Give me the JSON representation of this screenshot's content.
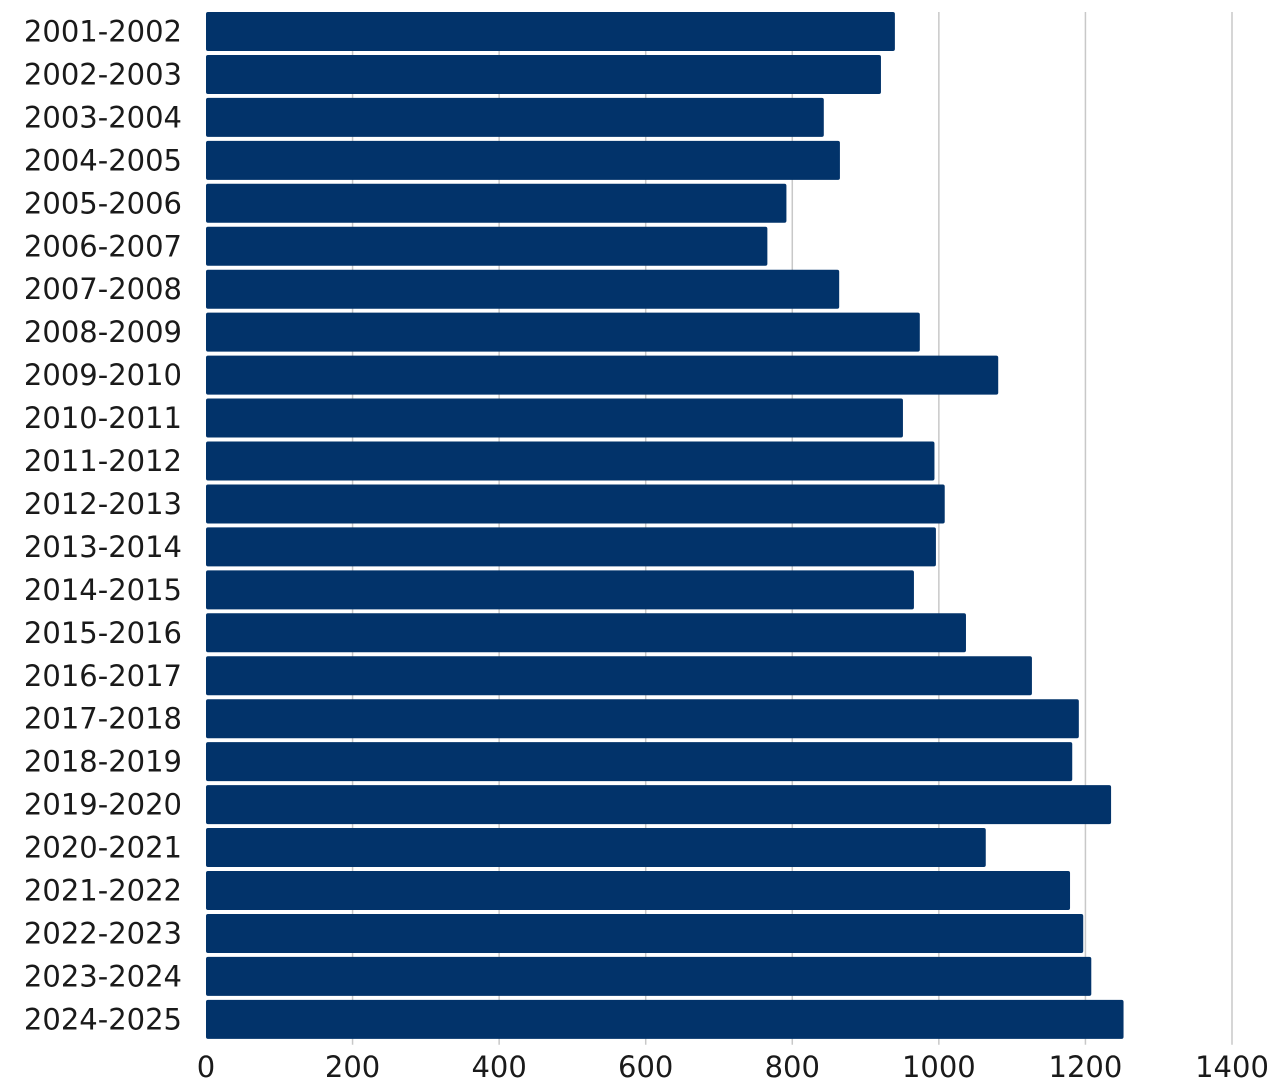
{
  "chart_data": {
    "type": "bar",
    "orientation": "horizontal",
    "categories": [
      "2001-2002",
      "2002-2003",
      "2003-2004",
      "2004-2005",
      "2005-2006",
      "2006-2007",
      "2007-2008",
      "2008-2009",
      "2009-2010",
      "2010-2011",
      "2011-2012",
      "2012-2013",
      "2013-2014",
      "2014-2015",
      "2015-2016",
      "2016-2017",
      "2017-2018",
      "2018-2019",
      "2019-2020",
      "2020-2021",
      "2021-2022",
      "2022-2023",
      "2023-2024",
      "2024-2025"
    ],
    "values": [
      940,
      921,
      843,
      865,
      792,
      766,
      864,
      974,
      1081,
      951,
      994,
      1008,
      996,
      966,
      1037,
      1127,
      1191,
      1182,
      1235,
      1064,
      1179,
      1197,
      1208,
      1252
    ],
    "xlim": [
      0,
      1400
    ],
    "xticks": [
      0,
      200,
      400,
      600,
      800,
      1000,
      1200,
      1400
    ],
    "xtick_labels": [
      "0",
      "200",
      "400",
      "600",
      "800",
      "1000",
      "1200",
      "1400"
    ],
    "title": "",
    "xlabel": "",
    "ylabel": "",
    "grid": "vertical",
    "legend": "none",
    "bar_color": "#02336A",
    "grid_color": "#c8c8c8"
  }
}
